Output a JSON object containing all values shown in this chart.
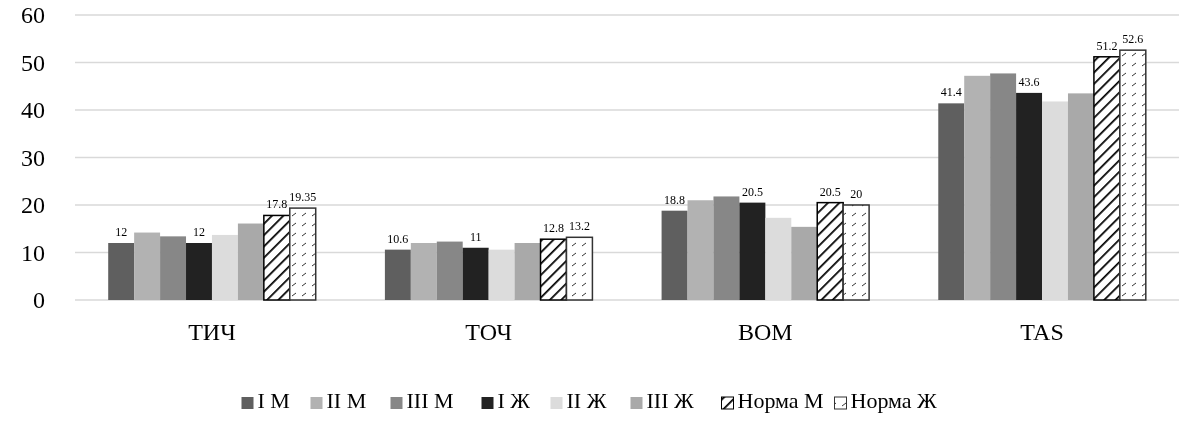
{
  "chart_data": {
    "type": "bar",
    "categories": [
      "ТИЧ",
      "ТОЧ",
      "ВОМ",
      "TAS"
    ],
    "series": [
      {
        "name": "I М",
        "color": "#5f5f5f",
        "values": [
          12,
          10.6,
          18.8,
          41.4
        ],
        "value_labels": [
          "12",
          "10.6",
          "18.8",
          "41.4"
        ]
      },
      {
        "name": "II М",
        "color": "#b2b2b2",
        "values": [
          14.2,
          12.0,
          21.0,
          47.2
        ]
      },
      {
        "name": "III М",
        "color": "#878787",
        "values": [
          13.4,
          12.3,
          21.8,
          47.7
        ]
      },
      {
        "name": "I Ж",
        "color": "#222222",
        "values": [
          12,
          11,
          20.5,
          43.6
        ],
        "value_labels": [
          "12",
          "11",
          "20.5",
          "43.6"
        ]
      },
      {
        "name": "II Ж",
        "color": "#dcdcdc",
        "values": [
          13.7,
          10.6,
          17.3,
          41.8
        ]
      },
      {
        "name": "III Ж",
        "color": "#a9a9a9",
        "values": [
          16.1,
          12.0,
          15.4,
          43.5
        ]
      },
      {
        "name": "Норма М",
        "color": "#000000",
        "values": [
          17.8,
          12.8,
          20.5,
          51.2
        ],
        "value_labels": [
          "17.8",
          "12.8",
          "20.5",
          "51.2"
        ]
      },
      {
        "name": "Норма Ж",
        "color": "#333333",
        "values": [
          19.35,
          13.2,
          20,
          52.6
        ],
        "value_labels": [
          "19.35",
          "13.2",
          "20",
          "52.6"
        ]
      }
    ],
    "ylim": [
      0,
      60
    ],
    "yticks": [
      0,
      10,
      20,
      30,
      40,
      50,
      60
    ],
    "grid": "y",
    "legend": "bottom"
  }
}
